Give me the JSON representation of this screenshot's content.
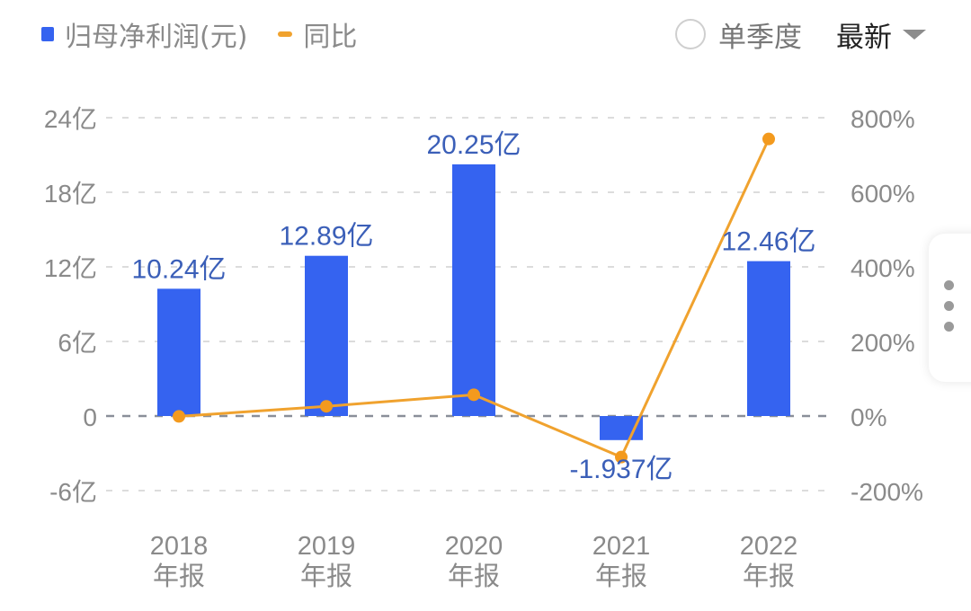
{
  "legend": {
    "bar_label": "归母净利润(元)",
    "line_label": "同比",
    "bar_color": "#3563f0",
    "line_color": "#f0a22e"
  },
  "controls": {
    "quarterly_label": "单季度",
    "quarterly_checked": false,
    "period_select": "最新"
  },
  "axes": {
    "left_ticks": [
      "24亿",
      "18亿",
      "12亿",
      "6亿",
      "0",
      "-6亿"
    ],
    "right_ticks": [
      "800%",
      "600%",
      "400%",
      "200%",
      "0%",
      "-200%"
    ]
  },
  "chart_data": {
    "type": "bar",
    "title": "",
    "categories": [
      "2018年报",
      "2019年报",
      "2020年报",
      "2021年报",
      "2022年报"
    ],
    "category_lines": [
      [
        "2018",
        "年报"
      ],
      [
        "2019",
        "年报"
      ],
      [
        "2020",
        "年报"
      ],
      [
        "2021",
        "年报"
      ],
      [
        "2022",
        "年报"
      ]
    ],
    "series": [
      {
        "name": "归母净利润(元)",
        "type": "bar",
        "axis": "left",
        "unit": "亿",
        "values": [
          10.24,
          12.89,
          20.25,
          -1.937,
          12.46
        ],
        "labels": [
          "10.24亿",
          "12.89亿",
          "20.25亿",
          "-1.937亿",
          "12.46亿"
        ],
        "color": "#3563f0"
      },
      {
        "name": "同比",
        "type": "line",
        "axis": "right",
        "unit": "%",
        "values": [
          -1,
          26,
          57,
          -110,
          743
        ],
        "color": "#f0a22e"
      }
    ],
    "xlabel": "",
    "ylabel": "",
    "ylim": [
      -6,
      24
    ],
    "y2lim": [
      -200,
      800
    ],
    "grid": true,
    "legend_position": "top-left"
  }
}
